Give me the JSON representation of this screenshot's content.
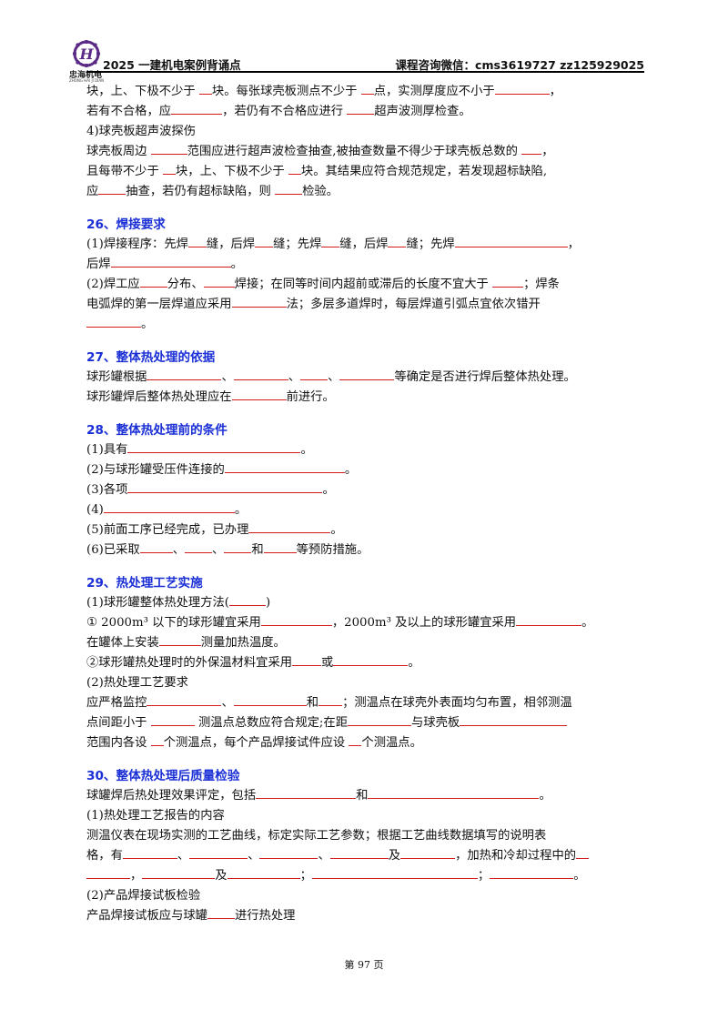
{
  "header": {
    "logo_text": "忠海机电",
    "logo_sub": "ZHONG HAI JI DIAN",
    "title": "2025 一建机电案例背诵点",
    "contact": "课程咨询微信：cms3619727  zz125929025"
  },
  "lines": {
    "l1a": "块，上、下极不少于 ",
    "l1b": "块。每张球壳板测点不少于 ",
    "l1c": "点，实测厚度应不小于",
    "l1d": "，",
    "l2a": "若有不合格，应",
    "l2b": "，若仍有不合格应进行 ",
    "l2c": "超声波测厚检查。",
    "l3": "4)球壳板超声波探伤",
    "l4a": "球壳板周边 ",
    "l4b": "范围应进行超声波检查抽查,被抽查数量不得少于球壳板总数的 ",
    "l4c": "，",
    "l5a": "且每带不少于 ",
    "l5b": "块，上、下极不少于 ",
    "l5c": "块。其结果应符合规范规定，若发现超标缺陷,",
    "l6a": "应",
    "l6b": "抽查，若仍有超标缺陷，则 ",
    "l6c": "检验。",
    "s26": "26、焊接要求",
    "l7a": "(1)焊接程序：先焊",
    "l7b": "缝，后焊",
    "l7c": "缝；先焊",
    "l7d": "缝，后焊",
    "l7e": "缝；先焊",
    "l7f": "，",
    "l8a": "后焊",
    "l8b": "。",
    "l9a": "(2)焊工应",
    "l9b": "分布、",
    "l9c": "焊接；在同等时间内超前或滞后的长度不宜大于 ",
    "l9d": "；焊条",
    "l10a": "电弧焊的第一层焊道应采用",
    "l10b": "法；多层多道焊时，每层焊道引弧点宜依次错开",
    "l11b": "。",
    "s27": "27、整体热处理的依据",
    "l12a": "球形罐根据",
    "l12b": "、",
    "l12c": "、",
    "l12d": "、",
    "l12e": "等确定是否进行焊后整体热处理。",
    "l13a": "球形罐焊后整体热处理应在",
    "l13b": "前进行。",
    "s28": "28、整体热处理前的条件",
    "c1a": "(1)具有",
    "c1b": "。",
    "c2a": "(2)与球形罐受压件连接的",
    "c2b": "。",
    "c3a": "(3)各项",
    "c3b": "。",
    "c4a": "(4)",
    "c4b": "。",
    "c5a": "(5)前面工序已经完成，已办理",
    "c5b": "。",
    "c6a": "(6)已采取",
    "c6b": "、",
    "c6c": "、",
    "c6d": "和",
    "c6e": "等预防措施。",
    "s29": "29、热处理工艺实施",
    "p1a": "(1)球形罐整体热处理方法(",
    "p1b": ")",
    "p2a": "① 2000m³ 以下的球形罐宜采用",
    "p2b": "，2000m³ 及以上的球形罐宜采用",
    "p2c": "。",
    "p3a": "在罐体上安装",
    "p3b": "测量加热温度。",
    "p4a": "②球形罐热处理时的外保温材料宜采用",
    "p4b": "或",
    "p4c": "。",
    "p5": "(2)热处理工艺要求",
    "p6a": "应严格监控",
    "p6b": "、",
    "p6c": "和",
    "p6d": "；测温点在球壳外表面均匀布置，相邻测温",
    "p7a": "点间距小于 ",
    "p7b": " 测温点总数应符合规定;在距",
    "p7c": "与球壳板",
    "p8a": "范围内各设 ",
    "p8b": "个测温点，每个产品焊接试件应设 ",
    "p8c": "个测温点。",
    "s30": "30、整体热处理后质量检验",
    "q1a": "球罐焊后热处理效果评定，包括",
    "q1b": "和",
    "q1c": "。",
    "q2": "(1)热处理工艺报告的内容",
    "q3": "测温仪表在现场实测的工艺曲线，标定实际工艺参数；根据工艺曲线数据填写的说明表",
    "q4a": "格，有",
    "q4b": "、",
    "q4c": "、",
    "q4d": "、",
    "q4e": "及",
    "q4f": "，加热和冷却过程中的",
    "q5a": "，",
    "q5b": "及",
    "q5c": "；",
    "q5d": "；",
    "q5e": "。",
    "q6": "(2)产品焊接试板检验",
    "q7a": "产品焊接试板应与球罐",
    "q7b": "进行热处理"
  },
  "footer": {
    "page": "第 97 页"
  }
}
